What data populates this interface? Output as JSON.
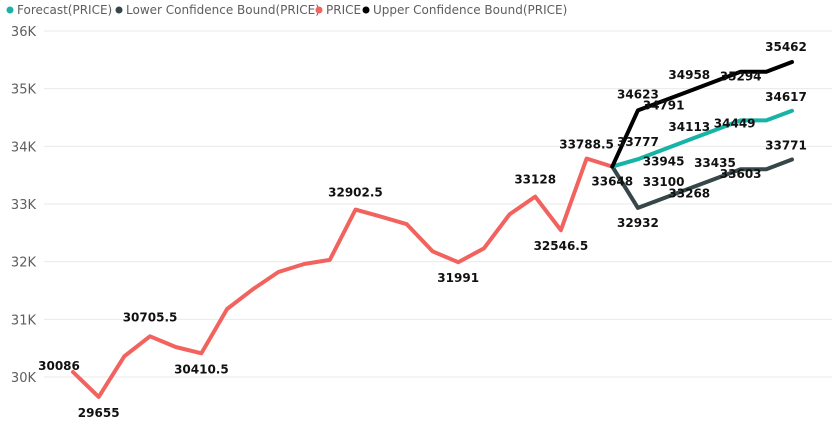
{
  "chart_data": {
    "type": "line",
    "title": "",
    "xlabel": "",
    "ylabel": "",
    "ylim": [
      29850,
      36000
    ],
    "y_ticks": [
      {
        "value": 30000,
        "label": "30K"
      },
      {
        "value": 31000,
        "label": "31K"
      },
      {
        "value": 32000,
        "label": "32K"
      },
      {
        "value": 33000,
        "label": "33K"
      },
      {
        "value": 34000,
        "label": "34K"
      },
      {
        "value": 35000,
        "label": "35K"
      },
      {
        "value": 36000,
        "label": "36K"
      }
    ],
    "grid": true,
    "legend_position": "top-left",
    "x_index_range": [
      0,
      28
    ],
    "series": [
      {
        "name": "Forecast(PRICE)",
        "legend_label": "Forecast(PRICE)",
        "color": "#17b3a6",
        "x": [
          21,
          22,
          23,
          24,
          25,
          26,
          27,
          28
        ],
        "values": [
          33648,
          33777,
          33945,
          34113,
          34281,
          34449,
          34449,
          34617
        ],
        "labels": [
          {
            "i": 1,
            "text": "33777"
          },
          {
            "i": 2,
            "text": "33945"
          },
          {
            "i": 3,
            "text": "34113"
          },
          {
            "i": 5,
            "text": "34449"
          },
          {
            "i": 7,
            "text": "34617"
          }
        ]
      },
      {
        "name": "Lower Confidence Bound(PRICE)",
        "legend_label": "Lower Confidence Bound(PRICE)",
        "color": "#374649",
        "x": [
          21,
          22,
          23,
          24,
          25,
          26,
          27,
          28
        ],
        "values": [
          33648,
          32932,
          33100,
          33268,
          33435,
          33603,
          33603,
          33771
        ],
        "labels": [
          {
            "i": 1,
            "text": "32932"
          },
          {
            "i": 2,
            "text": "33100"
          },
          {
            "i": 3,
            "text": "33268"
          },
          {
            "i": 4,
            "text": "33435"
          },
          {
            "i": 5,
            "text": "33603"
          },
          {
            "i": 7,
            "text": "33771"
          }
        ]
      },
      {
        "name": "PRICE",
        "legend_label": "PRICE",
        "color": "#f2625e",
        "x": [
          0,
          1,
          2,
          3,
          4,
          5,
          6,
          7,
          8,
          9,
          10,
          11,
          12,
          13,
          14,
          15,
          16,
          17,
          18,
          19,
          20,
          21
        ],
        "values": [
          30086,
          29655,
          30360,
          30705.5,
          30520,
          30410.5,
          31180,
          31520,
          31820,
          31960,
          32030,
          32902.5,
          32780,
          32650,
          32180,
          31991,
          32230,
          32820,
          33128,
          32546.5,
          33788.5,
          33648
        ],
        "labels": [
          {
            "i": 0,
            "text": "30086"
          },
          {
            "i": 1,
            "text": "29655"
          },
          {
            "i": 3,
            "text": "30705.5"
          },
          {
            "i": 5,
            "text": "30410.5"
          },
          {
            "i": 11,
            "text": "32902.5"
          },
          {
            "i": 15,
            "text": "31991"
          },
          {
            "i": 18,
            "text": "33128"
          },
          {
            "i": 19,
            "text": "32546.5"
          },
          {
            "i": 20,
            "text": "33788.5"
          },
          {
            "i": 21,
            "text": "33648"
          }
        ]
      },
      {
        "name": "Upper Confidence Bound(PRICE)",
        "legend_label": "Upper Confidence Bound(PRICE)",
        "color": "#000000",
        "x": [
          21,
          22,
          23,
          24,
          25,
          26,
          27,
          28
        ],
        "values": [
          33648,
          34623,
          34791,
          34958,
          35126,
          35294,
          35294,
          35462
        ],
        "labels": [
          {
            "i": 1,
            "text": "34623"
          },
          {
            "i": 2,
            "text": "34791"
          },
          {
            "i": 3,
            "text": "34958"
          },
          {
            "i": 5,
            "text": "35294"
          },
          {
            "i": 7,
            "text": "35462"
          }
        ]
      }
    ]
  }
}
